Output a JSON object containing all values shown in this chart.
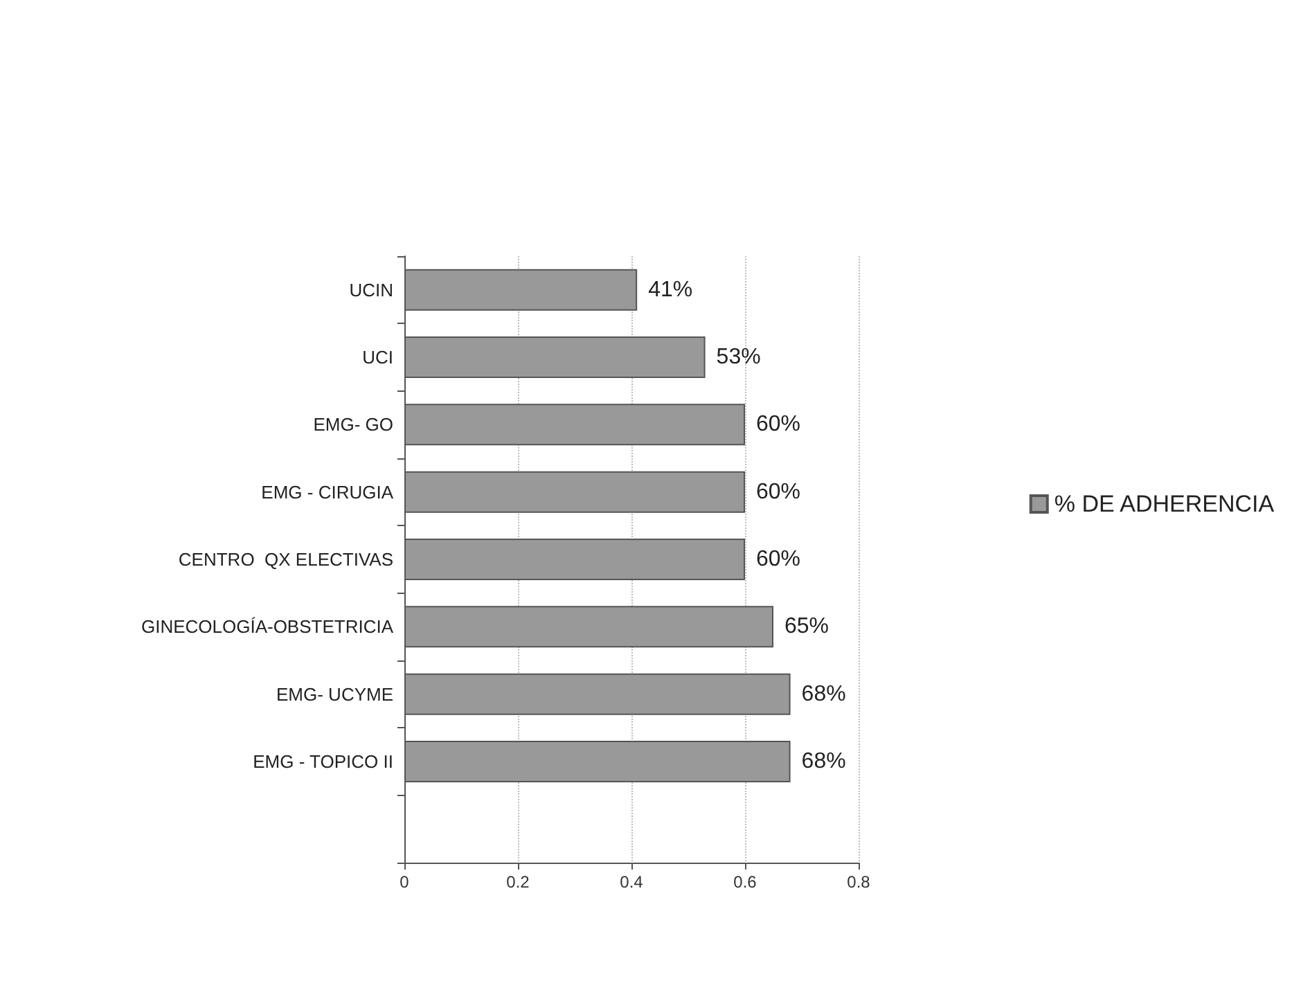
{
  "chart_data": {
    "type": "bar",
    "orientation": "horizontal",
    "categories": [
      "UCIN",
      "UCI",
      "EMG- GO",
      "EMG - CIRUGIA",
      "CENTRO  QX ELECTIVAS",
      "GINECOLOGÍA-OBSTETRICIA",
      "EMG- UCYME",
      "EMG - TOPICO II",
      null
    ],
    "series": [
      {
        "name": "% DE ADHERENCIA",
        "color": "#999999",
        "values": [
          0.41,
          0.53,
          0.6,
          0.6,
          0.6,
          0.65,
          0.68,
          0.68,
          null
        ],
        "value_labels": [
          "41%",
          "53%",
          "60%",
          "60%",
          "60%",
          "65%",
          "68%",
          "68%",
          null
        ]
      }
    ],
    "xlim": [
      0,
      0.8
    ],
    "xticks": [
      0,
      0.2,
      0.4,
      0.6,
      0.8
    ],
    "grid": "x",
    "legend": "right"
  }
}
